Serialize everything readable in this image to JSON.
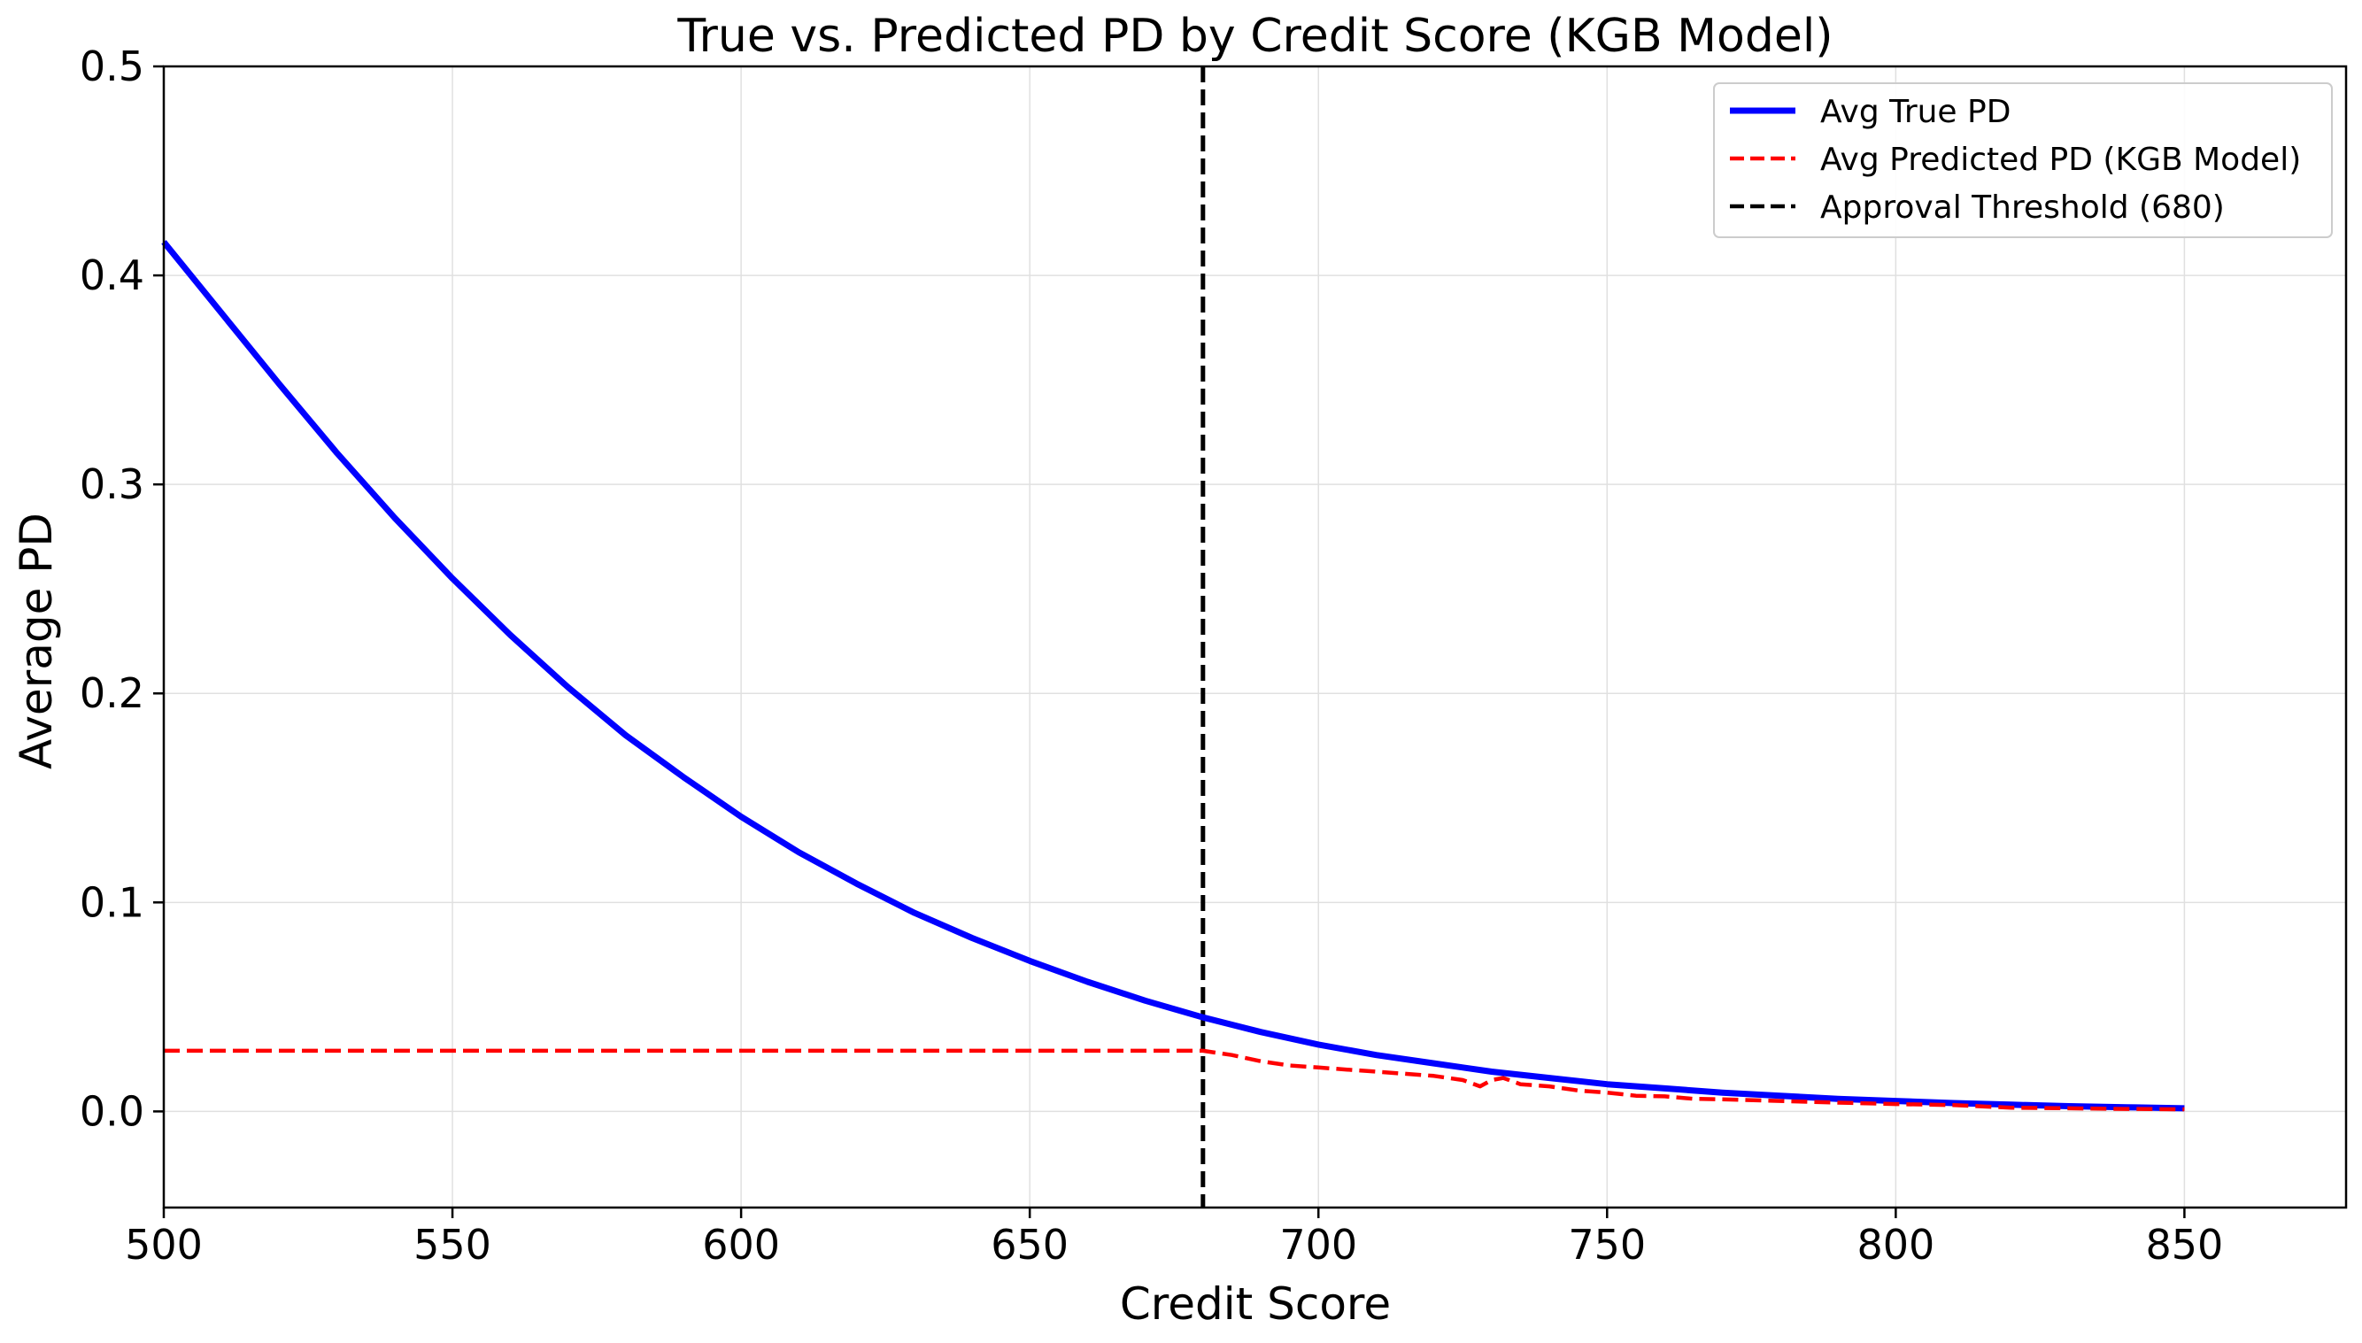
{
  "chart_data": {
    "type": "line",
    "title": "True vs. Predicted PD by Credit Score (KGB Model)",
    "xlabel": "Credit Score",
    "ylabel": "Average PD",
    "xlim": [
      500,
      878
    ],
    "ylim": [
      -0.046,
      0.5
    ],
    "xticks": [
      500,
      550,
      600,
      650,
      700,
      750,
      800,
      850
    ],
    "yticks": [
      0.0,
      0.1,
      0.2,
      0.3,
      0.4,
      0.5
    ],
    "xtick_labels": [
      "500",
      "550",
      "600",
      "650",
      "700",
      "750",
      "800",
      "850"
    ],
    "ytick_labels": [
      "0.0",
      "0.1",
      "0.2",
      "0.3",
      "0.4",
      "0.5"
    ],
    "grid": true,
    "legend_position": "top-right",
    "series": [
      {
        "name": "Avg True PD",
        "color": "#0000ff",
        "style": "solid",
        "x": [
          500,
          510,
          520,
          530,
          540,
          550,
          560,
          570,
          580,
          590,
          600,
          610,
          620,
          630,
          640,
          650,
          660,
          670,
          680,
          690,
          700,
          710,
          720,
          730,
          740,
          750,
          760,
          770,
          780,
          790,
          800,
          810,
          820,
          830,
          840,
          850
        ],
        "y": [
          0.416,
          0.382,
          0.348,
          0.315,
          0.284,
          0.255,
          0.228,
          0.203,
          0.18,
          0.16,
          0.141,
          0.124,
          0.109,
          0.095,
          0.083,
          0.072,
          0.062,
          0.053,
          0.045,
          0.038,
          0.032,
          0.027,
          0.023,
          0.019,
          0.016,
          0.013,
          0.011,
          0.009,
          0.0075,
          0.006,
          0.005,
          0.004,
          0.0032,
          0.0025,
          0.002,
          0.0015
        ]
      },
      {
        "name": "Avg Predicted PD (KGB Model)",
        "color": "#ff0000",
        "style": "dashed",
        "x": [
          500,
          680,
          685,
          690,
          695,
          700,
          705,
          710,
          715,
          720,
          725,
          728,
          730,
          732,
          735,
          740,
          745,
          750,
          755,
          760,
          765,
          770,
          780,
          790,
          800,
          810,
          820,
          830,
          840,
          850
        ],
        "y": [
          0.029,
          0.029,
          0.027,
          0.024,
          0.022,
          0.021,
          0.02,
          0.019,
          0.018,
          0.017,
          0.015,
          0.012,
          0.015,
          0.016,
          0.013,
          0.012,
          0.01,
          0.009,
          0.0075,
          0.0072,
          0.006,
          0.0058,
          0.005,
          0.0042,
          0.0035,
          0.003,
          0.0018,
          0.0015,
          0.0012,
          0.001
        ]
      },
      {
        "name": "Approval Threshold (680)",
        "color": "#000000",
        "style": "dashed",
        "vline_x": 680
      }
    ]
  }
}
